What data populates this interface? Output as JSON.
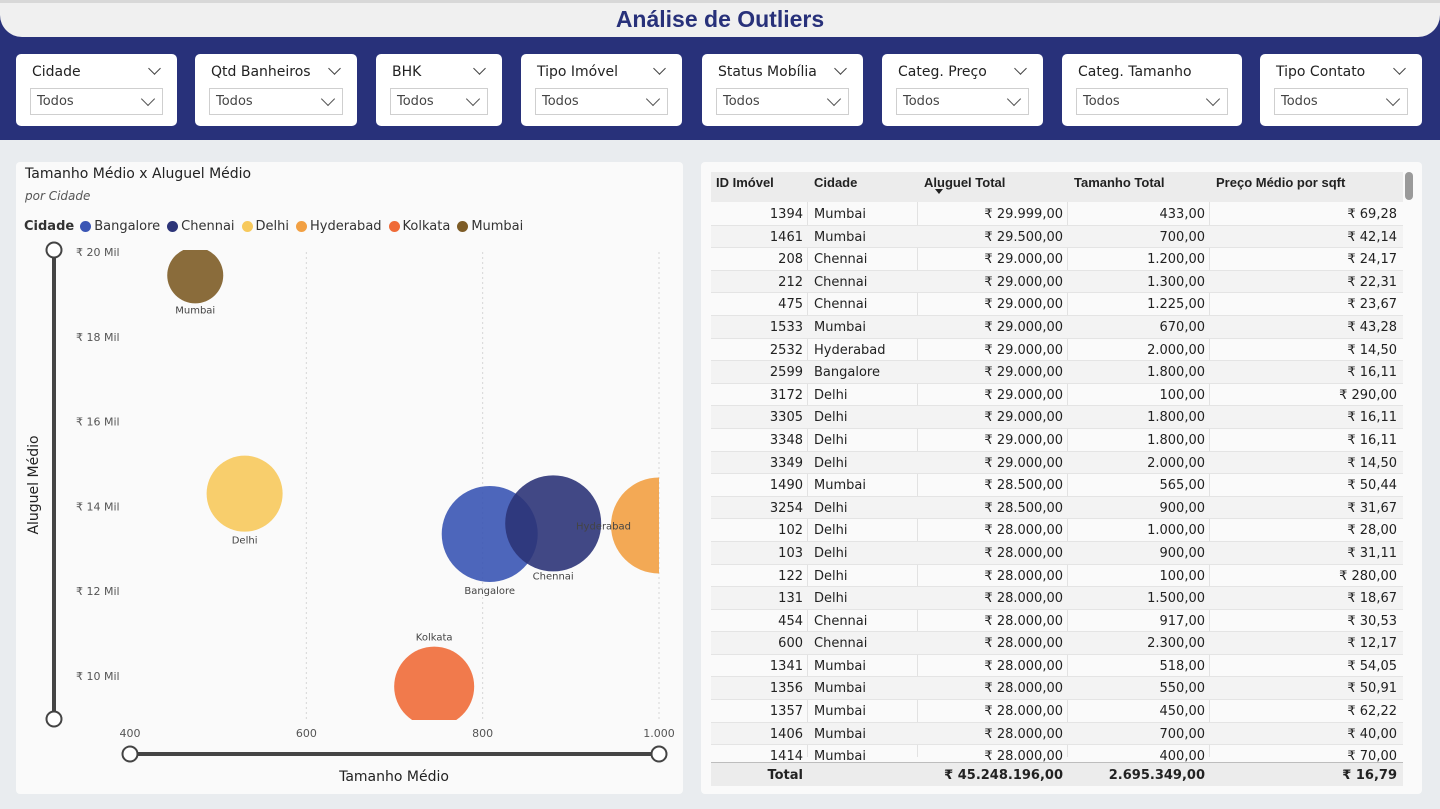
{
  "page": {
    "title": "Análise de Outliers"
  },
  "slicers": [
    {
      "name": "Cidade",
      "value": "Todos"
    },
    {
      "name": "Qtd Banheiros",
      "value": "Todos"
    },
    {
      "name": "BHK",
      "value": "Todos"
    },
    {
      "name": "Tipo Imóvel",
      "value": "Todos"
    },
    {
      "name": "Status Mobília",
      "value": "Todos"
    },
    {
      "name": "Categ. Preço",
      "value": "Todos"
    },
    {
      "name": "Categ. Tamanho",
      "value": "Todos"
    },
    {
      "name": "Tipo Contato",
      "value": "Todos"
    }
  ],
  "chart_data": {
    "type": "scatter",
    "title": "Tamanho Médio x Aluguel Médio",
    "subtitle": "por Cidade",
    "xlabel": "Tamanho Médio",
    "ylabel": "Aluguel Médio",
    "legend_title": "Cidade",
    "legend_position": "top-left",
    "xlim": [
      400,
      1000
    ],
    "ylim": [
      9500,
      20000
    ],
    "x_ticks": [
      {
        "value": 400,
        "label": "400"
      },
      {
        "value": 600,
        "label": "600"
      },
      {
        "value": 800,
        "label": "800"
      },
      {
        "value": 1000,
        "label": "1.000"
      }
    ],
    "y_ticks": [
      {
        "value": 20000,
        "label": "₹ 20 Mil"
      },
      {
        "value": 18000,
        "label": "₹ 18 Mil"
      },
      {
        "value": 16000,
        "label": "₹ 16 Mil"
      },
      {
        "value": 14000,
        "label": "₹ 14 Mil"
      },
      {
        "value": 12000,
        "label": "₹ 12 Mil"
      },
      {
        "value": 10000,
        "label": "₹ 10 Mil"
      }
    ],
    "grid": "vertical dotted",
    "series": [
      {
        "name": "Bangalore",
        "color": "#3a55b4",
        "x": 808,
        "y": 13350
      },
      {
        "name": "Chennai",
        "color": "#2c3478",
        "x": 880,
        "y": 13600
      },
      {
        "name": "Delhi",
        "color": "#f7c95c",
        "x": 530,
        "y": 14300
      },
      {
        "name": "Hyderabad",
        "color": "#f2a043",
        "x": 1000,
        "y": 13550
      },
      {
        "name": "Kolkata",
        "color": "#ef6b38",
        "x": 745,
        "y": 9750
      },
      {
        "name": "Mumbai",
        "color": "#7d5c26",
        "x": 474,
        "y": 19450
      }
    ]
  },
  "table": {
    "columns": [
      "ID Imóvel",
      "Cidade",
      "Aluguel Total",
      "Tamanho Total",
      "Preço Médio por sqft"
    ],
    "rows": [
      [
        "1394",
        "Mumbai",
        "₹ 29.999,00",
        "433,00",
        "₹ 69,28"
      ],
      [
        "1461",
        "Mumbai",
        "₹ 29.500,00",
        "700,00",
        "₹ 42,14"
      ],
      [
        "208",
        "Chennai",
        "₹ 29.000,00",
        "1.200,00",
        "₹ 24,17"
      ],
      [
        "212",
        "Chennai",
        "₹ 29.000,00",
        "1.300,00",
        "₹ 22,31"
      ],
      [
        "475",
        "Chennai",
        "₹ 29.000,00",
        "1.225,00",
        "₹ 23,67"
      ],
      [
        "1533",
        "Mumbai",
        "₹ 29.000,00",
        "670,00",
        "₹ 43,28"
      ],
      [
        "2532",
        "Hyderabad",
        "₹ 29.000,00",
        "2.000,00",
        "₹ 14,50"
      ],
      [
        "2599",
        "Bangalore",
        "₹ 29.000,00",
        "1.800,00",
        "₹ 16,11"
      ],
      [
        "3172",
        "Delhi",
        "₹ 29.000,00",
        "100,00",
        "₹ 290,00"
      ],
      [
        "3305",
        "Delhi",
        "₹ 29.000,00",
        "1.800,00",
        "₹ 16,11"
      ],
      [
        "3348",
        "Delhi",
        "₹ 29.000,00",
        "1.800,00",
        "₹ 16,11"
      ],
      [
        "3349",
        "Delhi",
        "₹ 29.000,00",
        "2.000,00",
        "₹ 14,50"
      ],
      [
        "1490",
        "Mumbai",
        "₹ 28.500,00",
        "565,00",
        "₹ 50,44"
      ],
      [
        "3254",
        "Delhi",
        "₹ 28.500,00",
        "900,00",
        "₹ 31,67"
      ],
      [
        "102",
        "Delhi",
        "₹ 28.000,00",
        "1.000,00",
        "₹ 28,00"
      ],
      [
        "103",
        "Delhi",
        "₹ 28.000,00",
        "900,00",
        "₹ 31,11"
      ],
      [
        "122",
        "Delhi",
        "₹ 28.000,00",
        "100,00",
        "₹ 280,00"
      ],
      [
        "131",
        "Delhi",
        "₹ 28.000,00",
        "1.500,00",
        "₹ 18,67"
      ],
      [
        "454",
        "Chennai",
        "₹ 28.000,00",
        "917,00",
        "₹ 30,53"
      ],
      [
        "600",
        "Chennai",
        "₹ 28.000,00",
        "2.300,00",
        "₹ 12,17"
      ],
      [
        "1341",
        "Mumbai",
        "₹ 28.000,00",
        "518,00",
        "₹ 54,05"
      ],
      [
        "1356",
        "Mumbai",
        "₹ 28.000,00",
        "550,00",
        "₹ 50,91"
      ],
      [
        "1357",
        "Mumbai",
        "₹ 28.000,00",
        "450,00",
        "₹ 62,22"
      ],
      [
        "1406",
        "Mumbai",
        "₹ 28.000,00",
        "700,00",
        "₹ 40,00"
      ],
      [
        "1414",
        "Mumbai",
        "₹ 28.000,00",
        "400,00",
        "₹ 70,00"
      ]
    ],
    "total": {
      "label": "Total",
      "aluguel": "₹ 45.248.196,00",
      "tamanho": "2.695.349,00",
      "preco": "₹ 16,79"
    }
  }
}
